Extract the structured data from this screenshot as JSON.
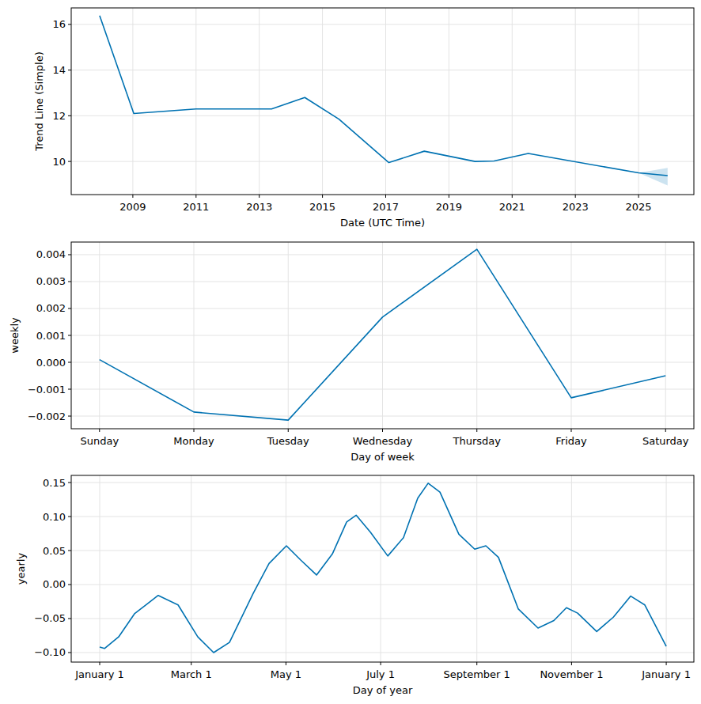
{
  "chart_data": [
    {
      "type": "line",
      "x_label": "Date (UTC Time)",
      "y_label": "Trend Line (Simple)",
      "color": "#0072B2",
      "grid": true,
      "x": [
        2007.95,
        2009.03,
        2011.0,
        2013.39,
        2014.44,
        2015.52,
        2017.1,
        2018.22,
        2019.83,
        2020.43,
        2021.51,
        2025.0,
        2025.92
      ],
      "values": [
        16.38,
        12.1,
        12.3,
        12.3,
        12.8,
        11.85,
        9.95,
        10.45,
        10.0,
        10.02,
        10.35,
        9.5,
        9.38
      ],
      "lower": [
        null,
        null,
        null,
        null,
        null,
        null,
        null,
        null,
        null,
        null,
        null,
        9.5,
        8.95
      ],
      "upper": [
        null,
        null,
        null,
        null,
        null,
        null,
        null,
        null,
        null,
        null,
        null,
        9.5,
        9.72
      ],
      "xlim": [
        2007.05,
        2026.75
      ],
      "xticks": [
        2009,
        2011,
        2013,
        2015,
        2017,
        2019,
        2021,
        2023,
        2025
      ],
      "ylim": [
        8.55,
        16.72
      ],
      "yticks": [
        10,
        12,
        14,
        16
      ]
    },
    {
      "type": "line",
      "x_label": "Day of week",
      "y_label": "weekly",
      "color": "#0072B2",
      "grid": true,
      "categories": [
        "Sunday",
        "Monday",
        "Tuesday",
        "Wednesday",
        "Thursday",
        "Friday",
        "Saturday"
      ],
      "values": [
        0.0001,
        -0.00185,
        -0.00215,
        0.00168,
        0.0042,
        -0.00132,
        -0.0005
      ],
      "ylim": [
        -0.00247,
        0.00447
      ],
      "yticks": [
        {
          "value": -0.002,
          "label": "−0.002"
        },
        {
          "value": -0.001,
          "label": "−0.001"
        },
        {
          "value": 0,
          "label": "0.000"
        },
        0.001,
        0.002,
        0.003,
        0.004
      ]
    },
    {
      "type": "line",
      "x_label": "Day of year",
      "y_label": "yearly",
      "color": "#0072B2",
      "grid": true,
      "x": [
        0,
        3.1,
        12.2,
        22.4,
        37.7,
        50.5,
        63.2,
        73.4,
        83.6,
        98.9,
        109.1,
        120.3,
        129.5,
        139.7,
        149.9,
        159.1,
        165.2,
        174.4,
        185.6,
        195.7,
        204.9,
        211.6,
        219.2,
        231.4,
        241.6,
        248.8,
        256.9,
        269.7,
        282.4,
        292.6,
        300.7,
        307.9,
        320.2,
        330.9,
        342.1,
        351.2,
        365
      ],
      "values": [
        -0.092,
        -0.094,
        -0.077,
        -0.043,
        -0.016,
        -0.03,
        -0.077,
        -0.1,
        -0.085,
        -0.013,
        0.031,
        0.057,
        0.036,
        0.014,
        0.045,
        0.092,
        0.102,
        0.077,
        0.042,
        0.069,
        0.127,
        0.149,
        0.136,
        0.074,
        0.052,
        0.057,
        0.04,
        -0.036,
        -0.064,
        -0.053,
        -0.034,
        -0.042,
        -0.069,
        -0.048,
        -0.017,
        -0.03,
        -0.091
      ],
      "xlim": [
        -18.35,
        382.8
      ],
      "xticks": [
        {
          "value": 0,
          "label": "January 1"
        },
        {
          "value": 59,
          "label": "March 1"
        },
        {
          "value": 120,
          "label": "May 1"
        },
        {
          "value": 181,
          "label": "July 1"
        },
        {
          "value": 243,
          "label": "September 1"
        },
        {
          "value": 304,
          "label": "November 1"
        },
        {
          "value": 365,
          "label": "January 1"
        }
      ],
      "ylim": [
        -0.114,
        0.1605
      ],
      "yticks": [
        {
          "value": -0.1,
          "label": "−0.10"
        },
        {
          "value": -0.05,
          "label": "−0.05"
        },
        {
          "value": 0,
          "label": "0.00"
        },
        0.05,
        {
          "value": 0.1,
          "label": "0.10"
        },
        0.15
      ]
    }
  ]
}
